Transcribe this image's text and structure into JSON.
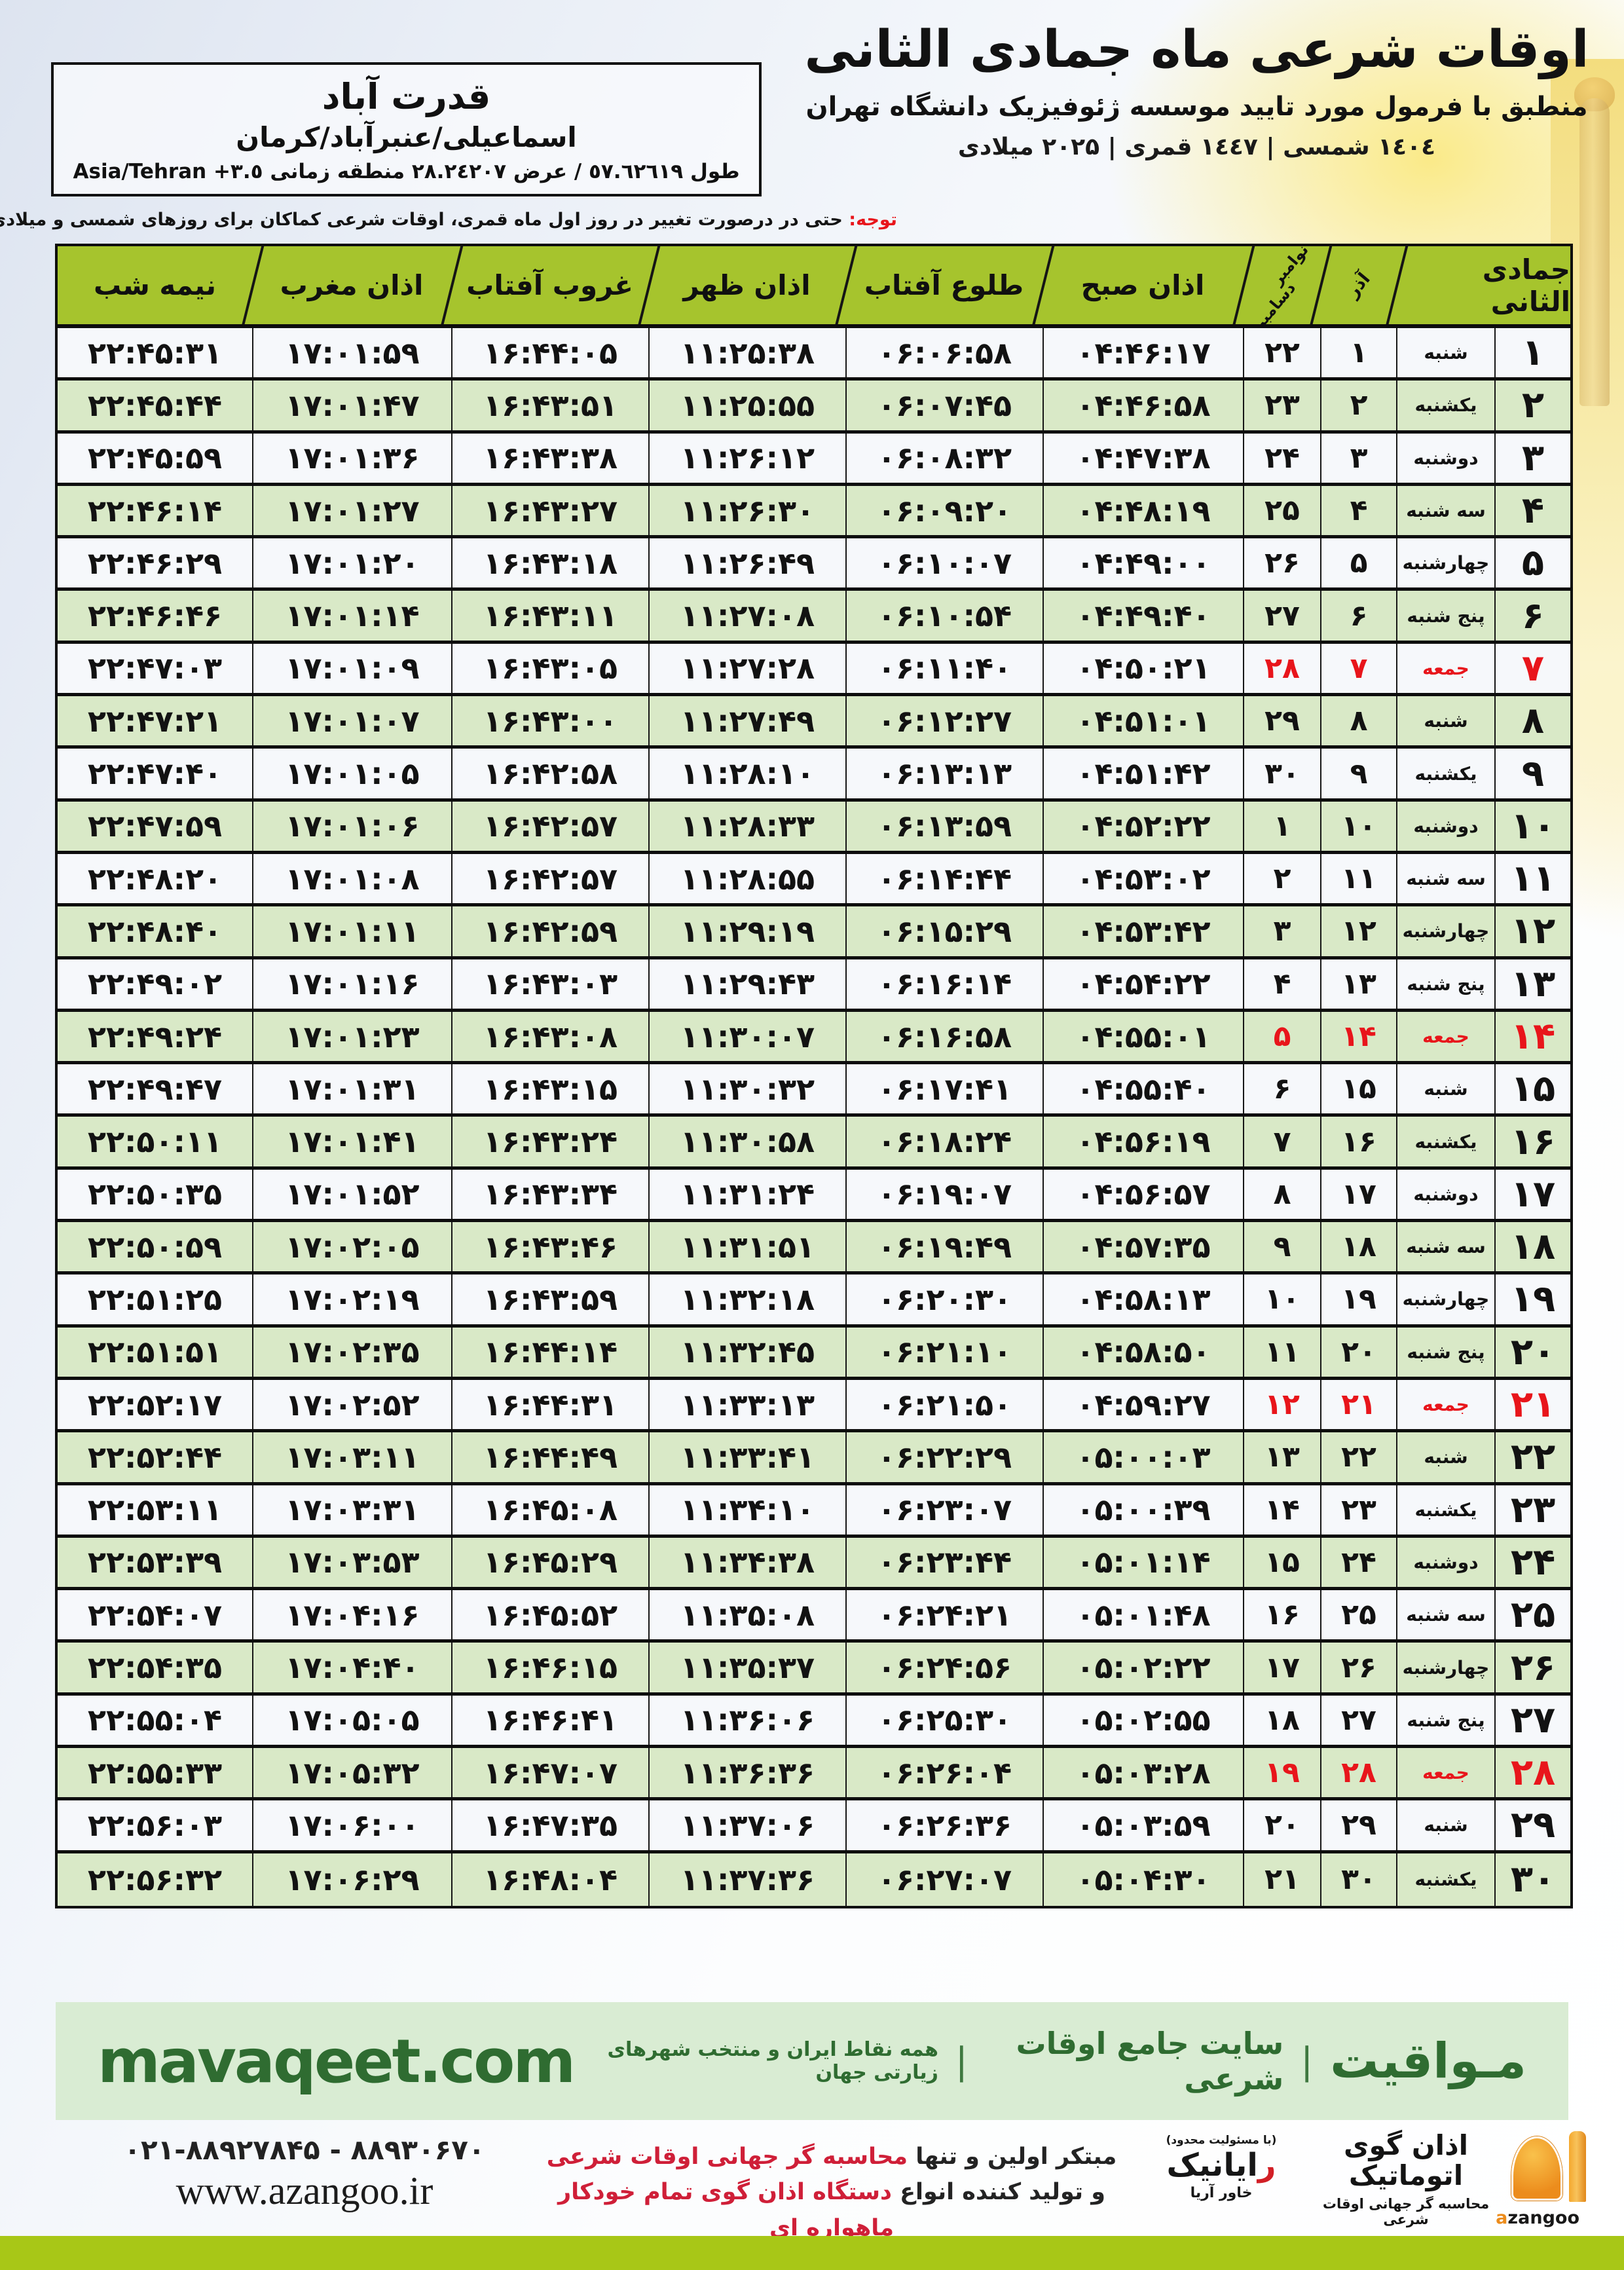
{
  "colors": {
    "header_green": "#a6c42d",
    "row_green": "#d9e9c7",
    "row_white": "#f6f8fb",
    "friday_red": "#e8151b",
    "footer_green_bg": "#d9ecd3",
    "footer_green_text": "#2f6c31",
    "bottom_bar": "#a8c717",
    "logo_orange": "#ec8c1c"
  },
  "header": {
    "title": "اوقات شرعی ماه جمادی الثانی",
    "subtitle": "منطبق با فرمول مورد تایید موسسه ژئوفیزیک دانشگاه تهران",
    "date_line": "۱٤۰٤ شمسی | ۱٤٤۷ قمری | ۲۰۲۵ میلادی",
    "location": {
      "city": "قدرت آباد",
      "region": "اسماعیلی/عنبرآباد/کرمان",
      "coords": "طول ٥٧.٦٢٦١٩ / عرض ٢٨.٢٤٢٠٧ منطقه زمانی",
      "timezone": "Asia/Tehran +٣.٥"
    },
    "notice_label": "توجه:",
    "notice_text": " حتی در درصورت تغییر در روز اول ماه قمری، اوقات شرعی کماکان برای روزهای شمسی و میلادی معتبر است."
  },
  "table": {
    "headers": {
      "hijri_month": "جمادی الثانی",
      "azar": "آذر",
      "november": "نوامبر",
      "december": "دسامبر",
      "fajr": "اذان صبح",
      "sunrise": "طلوع آفتاب",
      "dhuhr": "اذان ظهر",
      "sunset": "غروب آفتاب",
      "maghrib": "اذان مغرب",
      "midnight": "نیمه شب"
    },
    "rows": [
      {
        "day": "۱",
        "weekday": "شنبه",
        "azar": "۱",
        "greg": "۲۲",
        "fajr": "۰۴:۴۶:۱۷",
        "sunrise": "۰۶:۰۶:۵۸",
        "dhuhr": "۱۱:۲۵:۳۸",
        "sunset": "۱۶:۴۴:۰۵",
        "maghrib": "۱۷:۰۱:۵۹",
        "midnight": "۲۲:۴۵:۳۱",
        "friday": false
      },
      {
        "day": "۲",
        "weekday": "یکشنبه",
        "azar": "۲",
        "greg": "۲۳",
        "fajr": "۰۴:۴۶:۵۸",
        "sunrise": "۰۶:۰۷:۴۵",
        "dhuhr": "۱۱:۲۵:۵۵",
        "sunset": "۱۶:۴۳:۵۱",
        "maghrib": "۱۷:۰۱:۴۷",
        "midnight": "۲۲:۴۵:۴۴",
        "friday": false
      },
      {
        "day": "۳",
        "weekday": "دوشنبه",
        "azar": "۳",
        "greg": "۲۴",
        "fajr": "۰۴:۴۷:۳۸",
        "sunrise": "۰۶:۰۸:۳۲",
        "dhuhr": "۱۱:۲۶:۱۲",
        "sunset": "۱۶:۴۳:۳۸",
        "maghrib": "۱۷:۰۱:۳۶",
        "midnight": "۲۲:۴۵:۵۹",
        "friday": false
      },
      {
        "day": "۴",
        "weekday": "سه شنبه",
        "azar": "۴",
        "greg": "۲۵",
        "fajr": "۰۴:۴۸:۱۹",
        "sunrise": "۰۶:۰۹:۲۰",
        "dhuhr": "۱۱:۲۶:۳۰",
        "sunset": "۱۶:۴۳:۲۷",
        "maghrib": "۱۷:۰۱:۲۷",
        "midnight": "۲۲:۴۶:۱۴",
        "friday": false
      },
      {
        "day": "۵",
        "weekday": "چهارشنبه",
        "azar": "۵",
        "greg": "۲۶",
        "fajr": "۰۴:۴۹:۰۰",
        "sunrise": "۰۶:۱۰:۰۷",
        "dhuhr": "۱۱:۲۶:۴۹",
        "sunset": "۱۶:۴۳:۱۸",
        "maghrib": "۱۷:۰۱:۲۰",
        "midnight": "۲۲:۴۶:۲۹",
        "friday": false
      },
      {
        "day": "۶",
        "weekday": "پنج شنبه",
        "azar": "۶",
        "greg": "۲۷",
        "fajr": "۰۴:۴۹:۴۰",
        "sunrise": "۰۶:۱۰:۵۴",
        "dhuhr": "۱۱:۲۷:۰۸",
        "sunset": "۱۶:۴۳:۱۱",
        "maghrib": "۱۷:۰۱:۱۴",
        "midnight": "۲۲:۴۶:۴۶",
        "friday": false
      },
      {
        "day": "۷",
        "weekday": "جمعه",
        "azar": "۷",
        "greg": "۲۸",
        "fajr": "۰۴:۵۰:۲۱",
        "sunrise": "۰۶:۱۱:۴۰",
        "dhuhr": "۱۱:۲۷:۲۸",
        "sunset": "۱۶:۴۳:۰۵",
        "maghrib": "۱۷:۰۱:۰۹",
        "midnight": "۲۲:۴۷:۰۳",
        "friday": true
      },
      {
        "day": "۸",
        "weekday": "شنبه",
        "azar": "۸",
        "greg": "۲۹",
        "fajr": "۰۴:۵۱:۰۱",
        "sunrise": "۰۶:۱۲:۲۷",
        "dhuhr": "۱۱:۲۷:۴۹",
        "sunset": "۱۶:۴۳:۰۰",
        "maghrib": "۱۷:۰۱:۰۷",
        "midnight": "۲۲:۴۷:۲۱",
        "friday": false
      },
      {
        "day": "۹",
        "weekday": "یکشنبه",
        "azar": "۹",
        "greg": "۳۰",
        "fajr": "۰۴:۵۱:۴۲",
        "sunrise": "۰۶:۱۳:۱۳",
        "dhuhr": "۱۱:۲۸:۱۰",
        "sunset": "۱۶:۴۲:۵۸",
        "maghrib": "۱۷:۰۱:۰۵",
        "midnight": "۲۲:۴۷:۴۰",
        "friday": false
      },
      {
        "day": "۱۰",
        "weekday": "دوشنبه",
        "azar": "۱۰",
        "greg": "۱",
        "fajr": "۰۴:۵۲:۲۲",
        "sunrise": "۰۶:۱۳:۵۹",
        "dhuhr": "۱۱:۲۸:۳۳",
        "sunset": "۱۶:۴۲:۵۷",
        "maghrib": "۱۷:۰۱:۰۶",
        "midnight": "۲۲:۴۷:۵۹",
        "friday": false
      },
      {
        "day": "۱۱",
        "weekday": "سه شنبه",
        "azar": "۱۱",
        "greg": "۲",
        "fajr": "۰۴:۵۳:۰۲",
        "sunrise": "۰۶:۱۴:۴۴",
        "dhuhr": "۱۱:۲۸:۵۵",
        "sunset": "۱۶:۴۲:۵۷",
        "maghrib": "۱۷:۰۱:۰۸",
        "midnight": "۲۲:۴۸:۲۰",
        "friday": false
      },
      {
        "day": "۱۲",
        "weekday": "چهارشنبه",
        "azar": "۱۲",
        "greg": "۳",
        "fajr": "۰۴:۵۳:۴۲",
        "sunrise": "۰۶:۱۵:۲۹",
        "dhuhr": "۱۱:۲۹:۱۹",
        "sunset": "۱۶:۴۲:۵۹",
        "maghrib": "۱۷:۰۱:۱۱",
        "midnight": "۲۲:۴۸:۴۰",
        "friday": false
      },
      {
        "day": "۱۳",
        "weekday": "پنج شنبه",
        "azar": "۱۳",
        "greg": "۴",
        "fajr": "۰۴:۵۴:۲۲",
        "sunrise": "۰۶:۱۶:۱۴",
        "dhuhr": "۱۱:۲۹:۴۳",
        "sunset": "۱۶:۴۳:۰۳",
        "maghrib": "۱۷:۰۱:۱۶",
        "midnight": "۲۲:۴۹:۰۲",
        "friday": false
      },
      {
        "day": "۱۴",
        "weekday": "جمعه",
        "azar": "۱۴",
        "greg": "۵",
        "fajr": "۰۴:۵۵:۰۱",
        "sunrise": "۰۶:۱۶:۵۸",
        "dhuhr": "۱۱:۳۰:۰۷",
        "sunset": "۱۶:۴۳:۰۸",
        "maghrib": "۱۷:۰۱:۲۳",
        "midnight": "۲۲:۴۹:۲۴",
        "friday": true
      },
      {
        "day": "۱۵",
        "weekday": "شنبه",
        "azar": "۱۵",
        "greg": "۶",
        "fajr": "۰۴:۵۵:۴۰",
        "sunrise": "۰۶:۱۷:۴۱",
        "dhuhr": "۱۱:۳۰:۳۲",
        "sunset": "۱۶:۴۳:۱۵",
        "maghrib": "۱۷:۰۱:۳۱",
        "midnight": "۲۲:۴۹:۴۷",
        "friday": false
      },
      {
        "day": "۱۶",
        "weekday": "یکشنبه",
        "azar": "۱۶",
        "greg": "۷",
        "fajr": "۰۴:۵۶:۱۹",
        "sunrise": "۰۶:۱۸:۲۴",
        "dhuhr": "۱۱:۳۰:۵۸",
        "sunset": "۱۶:۴۳:۲۴",
        "maghrib": "۱۷:۰۱:۴۱",
        "midnight": "۲۲:۵۰:۱۱",
        "friday": false
      },
      {
        "day": "۱۷",
        "weekday": "دوشنبه",
        "azar": "۱۷",
        "greg": "۸",
        "fajr": "۰۴:۵۶:۵۷",
        "sunrise": "۰۶:۱۹:۰۷",
        "dhuhr": "۱۱:۳۱:۲۴",
        "sunset": "۱۶:۴۳:۳۴",
        "maghrib": "۱۷:۰۱:۵۲",
        "midnight": "۲۲:۵۰:۳۵",
        "friday": false
      },
      {
        "day": "۱۸",
        "weekday": "سه شنبه",
        "azar": "۱۸",
        "greg": "۹",
        "fajr": "۰۴:۵۷:۳۵",
        "sunrise": "۰۶:۱۹:۴۹",
        "dhuhr": "۱۱:۳۱:۵۱",
        "sunset": "۱۶:۴۳:۴۶",
        "maghrib": "۱۷:۰۲:۰۵",
        "midnight": "۲۲:۵۰:۵۹",
        "friday": false
      },
      {
        "day": "۱۹",
        "weekday": "چهارشنبه",
        "azar": "۱۹",
        "greg": "۱۰",
        "fajr": "۰۴:۵۸:۱۳",
        "sunrise": "۰۶:۲۰:۳۰",
        "dhuhr": "۱۱:۳۲:۱۸",
        "sunset": "۱۶:۴۳:۵۹",
        "maghrib": "۱۷:۰۲:۱۹",
        "midnight": "۲۲:۵۱:۲۵",
        "friday": false
      },
      {
        "day": "۲۰",
        "weekday": "پنج شنبه",
        "azar": "۲۰",
        "greg": "۱۱",
        "fajr": "۰۴:۵۸:۵۰",
        "sunrise": "۰۶:۲۱:۱۰",
        "dhuhr": "۱۱:۳۲:۴۵",
        "sunset": "۱۶:۴۴:۱۴",
        "maghrib": "۱۷:۰۲:۳۵",
        "midnight": "۲۲:۵۱:۵۱",
        "friday": false
      },
      {
        "day": "۲۱",
        "weekday": "جمعه",
        "azar": "۲۱",
        "greg": "۱۲",
        "fajr": "۰۴:۵۹:۲۷",
        "sunrise": "۰۶:۲۱:۵۰",
        "dhuhr": "۱۱:۳۳:۱۳",
        "sunset": "۱۶:۴۴:۳۱",
        "maghrib": "۱۷:۰۲:۵۲",
        "midnight": "۲۲:۵۲:۱۷",
        "friday": true
      },
      {
        "day": "۲۲",
        "weekday": "شنبه",
        "azar": "۲۲",
        "greg": "۱۳",
        "fajr": "۰۵:۰۰:۰۳",
        "sunrise": "۰۶:۲۲:۲۹",
        "dhuhr": "۱۱:۳۳:۴۱",
        "sunset": "۱۶:۴۴:۴۹",
        "maghrib": "۱۷:۰۳:۱۱",
        "midnight": "۲۲:۵۲:۴۴",
        "friday": false
      },
      {
        "day": "۲۳",
        "weekday": "یکشنبه",
        "azar": "۲۳",
        "greg": "۱۴",
        "fajr": "۰۵:۰۰:۳۹",
        "sunrise": "۰۶:۲۳:۰۷",
        "dhuhr": "۱۱:۳۴:۱۰",
        "sunset": "۱۶:۴۵:۰۸",
        "maghrib": "۱۷:۰۳:۳۱",
        "midnight": "۲۲:۵۳:۱۱",
        "friday": false
      },
      {
        "day": "۲۴",
        "weekday": "دوشنبه",
        "azar": "۲۴",
        "greg": "۱۵",
        "fajr": "۰۵:۰۱:۱۴",
        "sunrise": "۰۶:۲۳:۴۴",
        "dhuhr": "۱۱:۳۴:۳۸",
        "sunset": "۱۶:۴۵:۲۹",
        "maghrib": "۱۷:۰۳:۵۳",
        "midnight": "۲۲:۵۳:۳۹",
        "friday": false
      },
      {
        "day": "۲۵",
        "weekday": "سه شنبه",
        "azar": "۲۵",
        "greg": "۱۶",
        "fajr": "۰۵:۰۱:۴۸",
        "sunrise": "۰۶:۲۴:۲۱",
        "dhuhr": "۱۱:۳۵:۰۸",
        "sunset": "۱۶:۴۵:۵۲",
        "maghrib": "۱۷:۰۴:۱۶",
        "midnight": "۲۲:۵۴:۰۷",
        "friday": false
      },
      {
        "day": "۲۶",
        "weekday": "چهارشنبه",
        "azar": "۲۶",
        "greg": "۱۷",
        "fajr": "۰۵:۰۲:۲۲",
        "sunrise": "۰۶:۲۴:۵۶",
        "dhuhr": "۱۱:۳۵:۳۷",
        "sunset": "۱۶:۴۶:۱۵",
        "maghrib": "۱۷:۰۴:۴۰",
        "midnight": "۲۲:۵۴:۳۵",
        "friday": false
      },
      {
        "day": "۲۷",
        "weekday": "پنج شنبه",
        "azar": "۲۷",
        "greg": "۱۸",
        "fajr": "۰۵:۰۲:۵۵",
        "sunrise": "۰۶:۲۵:۳۰",
        "dhuhr": "۱۱:۳۶:۰۶",
        "sunset": "۱۶:۴۶:۴۱",
        "maghrib": "۱۷:۰۵:۰۵",
        "midnight": "۲۲:۵۵:۰۴",
        "friday": false
      },
      {
        "day": "۲۸",
        "weekday": "جمعه",
        "azar": "۲۸",
        "greg": "۱۹",
        "fajr": "۰۵:۰۳:۲۸",
        "sunrise": "۰۶:۲۶:۰۴",
        "dhuhr": "۱۱:۳۶:۳۶",
        "sunset": "۱۶:۴۷:۰۷",
        "maghrib": "۱۷:۰۵:۳۲",
        "midnight": "۲۲:۵۵:۳۳",
        "friday": true
      },
      {
        "day": "۲۹",
        "weekday": "شنبه",
        "azar": "۲۹",
        "greg": "۲۰",
        "fajr": "۰۵:۰۳:۵۹",
        "sunrise": "۰۶:۲۶:۳۶",
        "dhuhr": "۱۱:۳۷:۰۶",
        "sunset": "۱۶:۴۷:۳۵",
        "maghrib": "۱۷:۰۶:۰۰",
        "midnight": "۲۲:۵۶:۰۳",
        "friday": false
      },
      {
        "day": "۳۰",
        "weekday": "یکشنبه",
        "azar": "۳۰",
        "greg": "۲۱",
        "fajr": "۰۵:۰۴:۳۰",
        "sunrise": "۰۶:۲۷:۰۷",
        "dhuhr": "۱۱:۳۷:۳۶",
        "sunset": "۱۶:۴۸:۰۴",
        "maghrib": "۱۷:۰۶:۲۹",
        "midnight": "۲۲:۵۶:۳۲",
        "friday": false
      }
    ]
  },
  "footer": {
    "bar": {
      "brand": "مـواقیت",
      "sep": "|",
      "site_desc": "سایت جامع اوقات شرعی",
      "coverage": "همه نقاط ایران و منتخب شهرهای زیارتی جهان",
      "domain": "mavaqeet.com"
    },
    "contact": {
      "phone": "۰۲۱-۸۸۹۲۷۸۴۵ - ۸۸۹۳۰۶۷۰",
      "website": "www.azangoo.ir"
    },
    "slogan": {
      "line1_black": "مبتکر اولین و تنها ",
      "line1_red": "محاسبه گر جهانی اوقات شرعی",
      "line2_black": "و تولید کننده انواع ",
      "line2_red": "دستگاه اذان گوی تمام خودکار ماهواره ای"
    },
    "rayanik": {
      "llc": "(با مسئولیت محدود)",
      "initial": "ر",
      "rest": "ایانیک",
      "side1": "آریا",
      "side2": "خاور"
    },
    "azangoo": {
      "title": "اذان گوی اتوماتیک",
      "subtitle": "محاسبه گر جهانی اوقات شرعی",
      "word_orange": "a",
      "word_black": "zangoo"
    }
  }
}
